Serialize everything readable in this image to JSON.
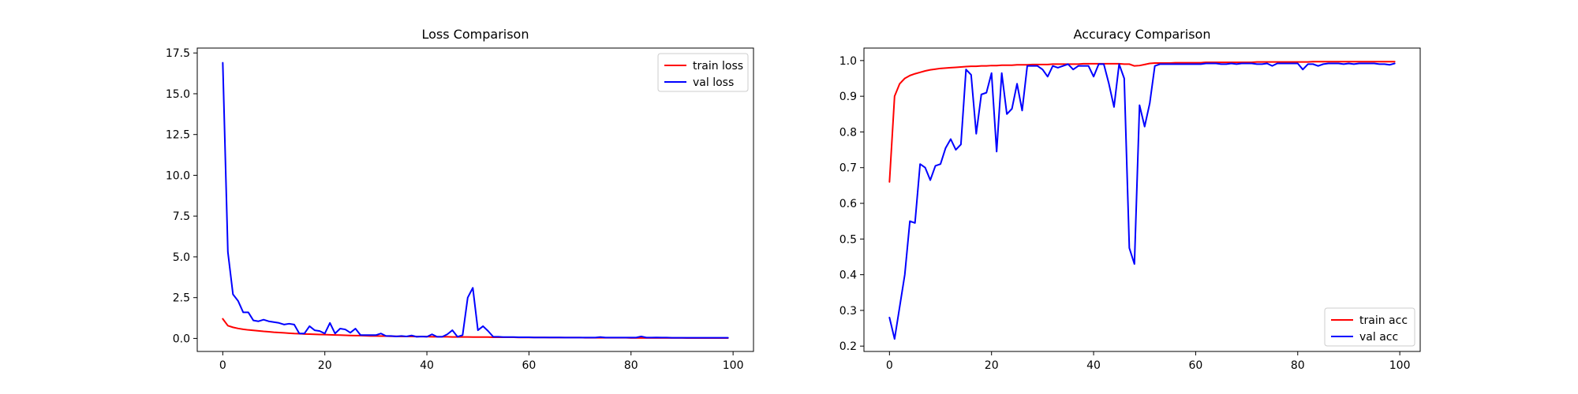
{
  "chart_data": [
    {
      "type": "line",
      "title": "Loss Comparison",
      "xlabel": "",
      "ylabel": "",
      "xlim": [
        -5,
        104
      ],
      "ylim": [
        -0.8,
        17.8
      ],
      "xticks": [
        0,
        20,
        40,
        60,
        80,
        100
      ],
      "xtick_labels": [
        "0",
        "20",
        "40",
        "60",
        "80",
        "100"
      ],
      "yticks": [
        0,
        2.5,
        5,
        7.5,
        10,
        12.5,
        15,
        17.5
      ],
      "ytick_labels": [
        "0.0",
        "2.5",
        "5.0",
        "7.5",
        "10.0",
        "12.5",
        "15.0",
        "17.5"
      ],
      "grid": false,
      "legend_position": "top-right",
      "series": [
        {
          "name": "train loss",
          "color": "#ff0000",
          "values": [
            1.2,
            0.78,
            0.68,
            0.61,
            0.56,
            0.52,
            0.49,
            0.46,
            0.43,
            0.41,
            0.38,
            0.36,
            0.34,
            0.32,
            0.3,
            0.29,
            0.27,
            0.26,
            0.25,
            0.24,
            0.23,
            0.22,
            0.21,
            0.2,
            0.19,
            0.18,
            0.17,
            0.17,
            0.16,
            0.15,
            0.15,
            0.14,
            0.14,
            0.13,
            0.13,
            0.12,
            0.12,
            0.12,
            0.11,
            0.11,
            0.11,
            0.1,
            0.1,
            0.1,
            0.1,
            0.09,
            0.09,
            0.09,
            0.09,
            0.08,
            0.08,
            0.08,
            0.08,
            0.07,
            0.07,
            0.07,
            0.07,
            0.07,
            0.06,
            0.06,
            0.06,
            0.06,
            0.06,
            0.06,
            0.05,
            0.05,
            0.05,
            0.05,
            0.05,
            0.05,
            0.05,
            0.04,
            0.04,
            0.04,
            0.04,
            0.04,
            0.04,
            0.04,
            0.04,
            0.04,
            0.03,
            0.03,
            0.03,
            0.03,
            0.03,
            0.03,
            0.03,
            0.03,
            0.03,
            0.03,
            0.03,
            0.02,
            0.02,
            0.02,
            0.02,
            0.02,
            0.02,
            0.02,
            0.02,
            0.02
          ]
        },
        {
          "name": "val loss",
          "color": "#0000ff",
          "values": [
            16.9,
            5.3,
            2.7,
            2.3,
            1.6,
            1.6,
            1.1,
            1.05,
            1.15,
            1.05,
            1.0,
            0.95,
            0.85,
            0.9,
            0.85,
            0.3,
            0.3,
            0.75,
            0.5,
            0.45,
            0.3,
            0.95,
            0.3,
            0.6,
            0.55,
            0.35,
            0.6,
            0.2,
            0.2,
            0.2,
            0.2,
            0.3,
            0.15,
            0.15,
            0.12,
            0.15,
            0.12,
            0.18,
            0.1,
            0.12,
            0.1,
            0.25,
            0.1,
            0.1,
            0.25,
            0.5,
            0.1,
            0.2,
            2.5,
            3.1,
            0.5,
            0.75,
            0.45,
            0.1,
            0.1,
            0.08,
            0.08,
            0.08,
            0.07,
            0.07,
            0.07,
            0.06,
            0.06,
            0.06,
            0.06,
            0.06,
            0.06,
            0.05,
            0.05,
            0.05,
            0.05,
            0.05,
            0.05,
            0.05,
            0.08,
            0.05,
            0.05,
            0.05,
            0.05,
            0.05,
            0.05,
            0.05,
            0.12,
            0.05,
            0.05,
            0.06,
            0.05,
            0.05,
            0.04,
            0.04,
            0.04,
            0.04,
            0.04,
            0.04,
            0.04,
            0.04,
            0.04,
            0.04,
            0.04,
            0.04
          ]
        }
      ]
    },
    {
      "type": "line",
      "title": "Accuracy Comparison",
      "xlabel": "",
      "ylabel": "",
      "xlim": [
        -5,
        104
      ],
      "ylim": [
        0.185,
        1.035
      ],
      "xticks": [
        0,
        20,
        40,
        60,
        80,
        100
      ],
      "xtick_labels": [
        "0",
        "20",
        "40",
        "60",
        "80",
        "100"
      ],
      "yticks": [
        0.2,
        0.3,
        0.4,
        0.5,
        0.6,
        0.7,
        0.8,
        0.9,
        1.0
      ],
      "ytick_labels": [
        "0.2",
        "0.3",
        "0.4",
        "0.5",
        "0.6",
        "0.7",
        "0.8",
        "0.9",
        "1.0"
      ],
      "grid": false,
      "legend_position": "bottom-right",
      "series": [
        {
          "name": "train acc",
          "color": "#ff0000",
          "values": [
            0.66,
            0.9,
            0.935,
            0.95,
            0.958,
            0.963,
            0.967,
            0.971,
            0.974,
            0.976,
            0.978,
            0.979,
            0.98,
            0.981,
            0.982,
            0.983,
            0.984,
            0.984,
            0.985,
            0.985,
            0.986,
            0.986,
            0.987,
            0.987,
            0.987,
            0.988,
            0.988,
            0.988,
            0.989,
            0.989,
            0.989,
            0.989,
            0.99,
            0.99,
            0.99,
            0.99,
            0.99,
            0.99,
            0.991,
            0.991,
            0.991,
            0.991,
            0.991,
            0.991,
            0.991,
            0.991,
            0.99,
            0.99,
            0.985,
            0.986,
            0.989,
            0.992,
            0.993,
            0.993,
            0.993,
            0.993,
            0.994,
            0.994,
            0.994,
            0.994,
            0.994,
            0.994,
            0.995,
            0.995,
            0.995,
            0.995,
            0.995,
            0.995,
            0.995,
            0.995,
            0.995,
            0.995,
            0.996,
            0.996,
            0.996,
            0.996,
            0.996,
            0.996,
            0.996,
            0.996,
            0.996,
            0.996,
            0.996,
            0.997,
            0.997,
            0.997,
            0.997,
            0.997,
            0.997,
            0.997,
            0.997,
            0.997,
            0.997,
            0.997,
            0.997,
            0.997,
            0.997,
            0.997,
            0.997,
            0.997
          ]
        },
        {
          "name": "val acc",
          "color": "#0000ff",
          "values": [
            0.28,
            0.22,
            0.31,
            0.4,
            0.55,
            0.545,
            0.71,
            0.7,
            0.665,
            0.705,
            0.71,
            0.755,
            0.78,
            0.75,
            0.765,
            0.975,
            0.96,
            0.795,
            0.905,
            0.91,
            0.965,
            0.745,
            0.965,
            0.85,
            0.865,
            0.935,
            0.86,
            0.985,
            0.985,
            0.985,
            0.975,
            0.955,
            0.985,
            0.98,
            0.985,
            0.99,
            0.975,
            0.985,
            0.985,
            0.985,
            0.955,
            0.99,
            0.99,
            0.935,
            0.87,
            0.99,
            0.95,
            0.475,
            0.43,
            0.875,
            0.815,
            0.88,
            0.985,
            0.99,
            0.99,
            0.99,
            0.99,
            0.99,
            0.99,
            0.99,
            0.99,
            0.99,
            0.992,
            0.992,
            0.992,
            0.99,
            0.99,
            0.992,
            0.99,
            0.992,
            0.992,
            0.992,
            0.99,
            0.99,
            0.992,
            0.985,
            0.992,
            0.992,
            0.992,
            0.992,
            0.992,
            0.975,
            0.99,
            0.99,
            0.985,
            0.99,
            0.992,
            0.992,
            0.992,
            0.99,
            0.992,
            0.99,
            0.992,
            0.992,
            0.992,
            0.992,
            0.99,
            0.99,
            0.988,
            0.992
          ]
        }
      ]
    }
  ]
}
